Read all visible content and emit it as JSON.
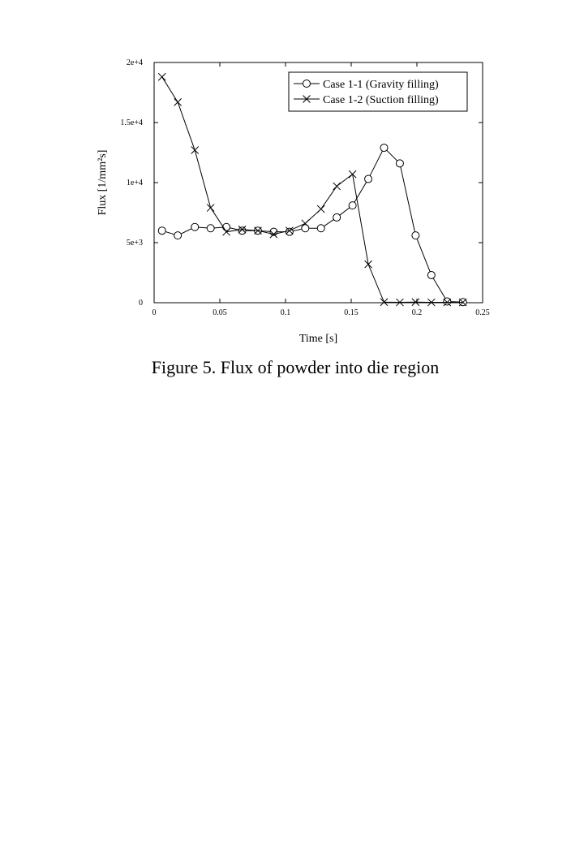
{
  "caption": "Figure 5. Flux of powder into die region",
  "chart_data": {
    "type": "line",
    "xlabel": "Time [s]",
    "ylabel": "Flux [1/mm²s]",
    "xlim": [
      0,
      0.25
    ],
    "ylim": [
      0,
      20000
    ],
    "xticks": [
      0,
      0.05,
      0.1,
      0.15,
      0.2,
      0.25
    ],
    "xtick_labels": [
      "0",
      "0.05",
      "0.1",
      "0.15",
      "0.2",
      "0.25"
    ],
    "yticks": [
      0,
      5000,
      10000,
      15000,
      20000
    ],
    "ytick_labels": [
      "0",
      "5e+3",
      "1e+4",
      "1.5e+4",
      "2e+4"
    ],
    "grid": false,
    "legend_position": "top-right",
    "series": [
      {
        "name": "Case 1-1 (Gravity filling)",
        "marker": "circle",
        "x": [
          0.006,
          0.018,
          0.031,
          0.043,
          0.055,
          0.067,
          0.079,
          0.091,
          0.103,
          0.115,
          0.127,
          0.139,
          0.151,
          0.163,
          0.175,
          0.187,
          0.199,
          0.211,
          0.223,
          0.235
        ],
        "y": [
          6000,
          5600,
          6300,
          6200,
          6300,
          6000,
          6000,
          5900,
          5900,
          6200,
          6200,
          7100,
          8100,
          10300,
          12900,
          11600,
          5600,
          2300,
          100,
          50
        ]
      },
      {
        "name": "Case 1-2 (Suction filling)",
        "marker": "x",
        "x": [
          0.006,
          0.018,
          0.031,
          0.043,
          0.055,
          0.067,
          0.079,
          0.091,
          0.103,
          0.115,
          0.127,
          0.139,
          0.151,
          0.163,
          0.175,
          0.187,
          0.199,
          0.211,
          0.223,
          0.235
        ],
        "y": [
          18800,
          16700,
          12700,
          7900,
          5900,
          6100,
          6000,
          5700,
          6000,
          6600,
          7800,
          9700,
          10700,
          3200,
          50,
          30,
          50,
          30,
          30,
          30
        ]
      }
    ]
  }
}
